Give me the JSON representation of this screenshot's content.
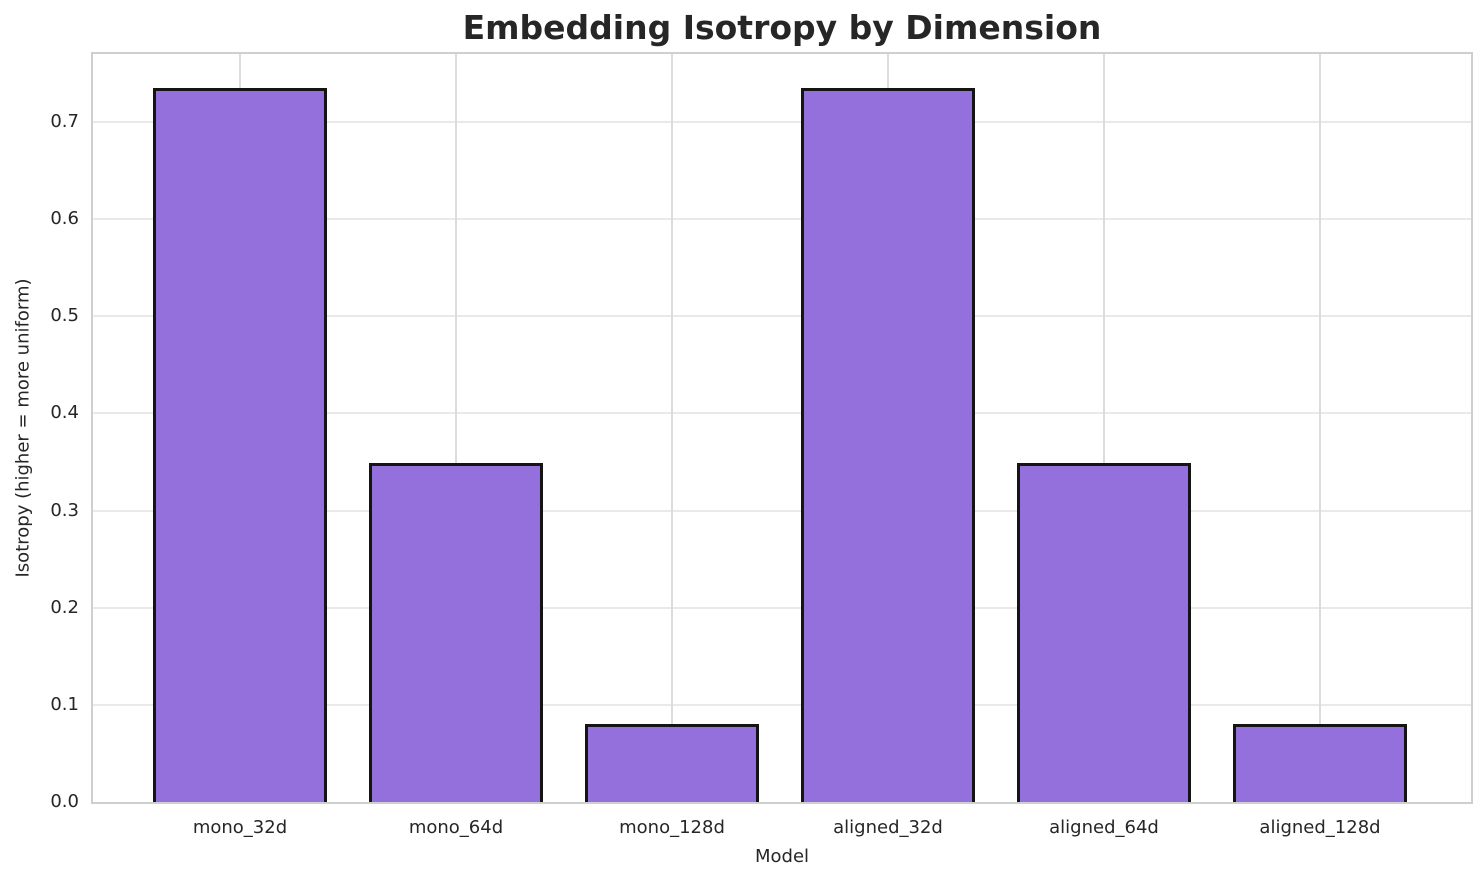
{
  "chart_data": {
    "type": "bar",
    "title": "Embedding Isotropy by Dimension",
    "xlabel": "Model",
    "ylabel": "Isotropy (higher = more uniform)",
    "categories": [
      "mono_32d",
      "mono_64d",
      "mono_128d",
      "aligned_32d",
      "aligned_64d",
      "aligned_128d"
    ],
    "values": [
      0.735,
      0.349,
      0.08,
      0.735,
      0.349,
      0.08
    ],
    "yticks": [
      "0.0",
      "0.1",
      "0.2",
      "0.3",
      "0.4",
      "0.5",
      "0.6",
      "0.7"
    ],
    "ylim": [
      0,
      0.77
    ],
    "grid": true,
    "legend": "none",
    "bar_color": "#9370DB",
    "bar_edge_color": "#141414",
    "grid_color": "#e6e6e6",
    "spine_color": "#cfcfcf",
    "text_color": "#262626",
    "background_color": "#ffffff"
  }
}
